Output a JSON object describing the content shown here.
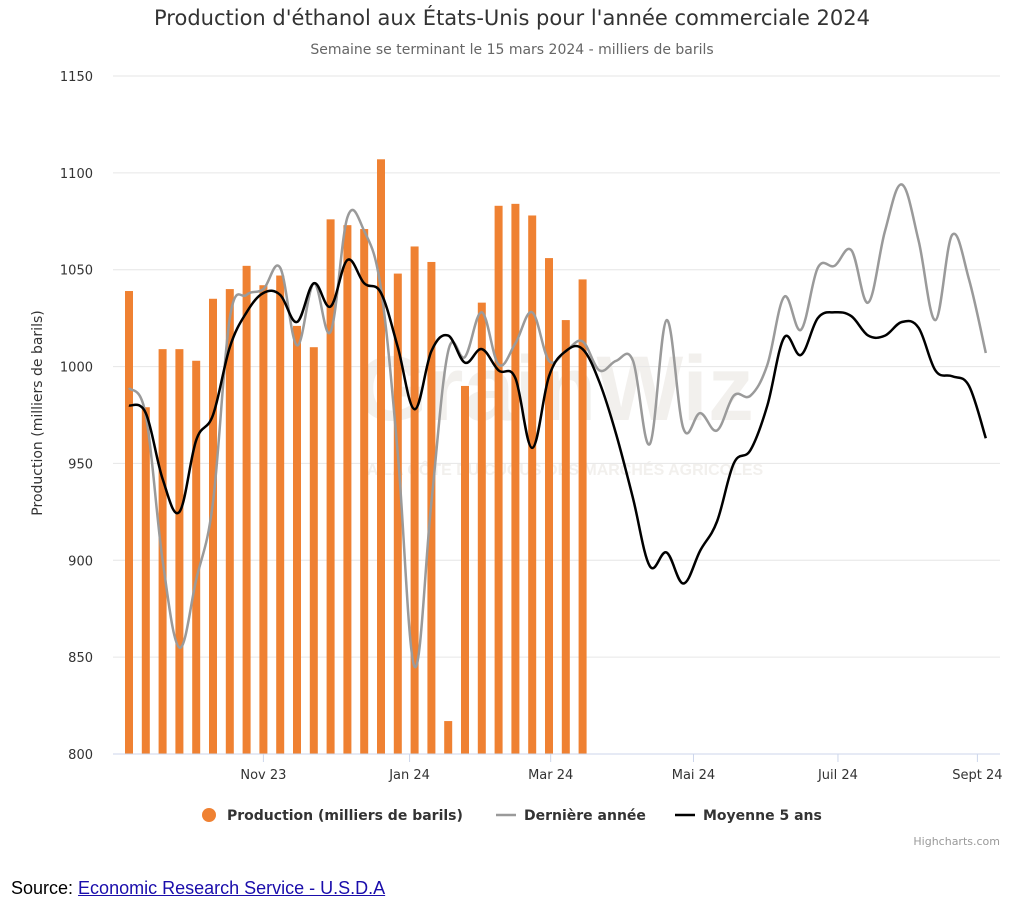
{
  "chart_data": {
    "type": "bar",
    "title": "Production d'éthanol aux États-Unis pour l'année commerciale 2024",
    "subtitle": "Semaine se terminant le 15 mars 2024 - milliers de barils",
    "ylabel": "Production (milliers de barils)",
    "xlabel": "",
    "ylim": [
      800,
      1150
    ],
    "yticks": [
      800,
      850,
      900,
      950,
      1000,
      1050,
      1100,
      1150
    ],
    "xticks": [
      "Nov 23",
      "Jan 24",
      "Mar 24",
      "Mai 24",
      "Juil 24",
      "Sept 24"
    ],
    "grid": true,
    "legend_position": "bottom",
    "series": [
      {
        "name": "Production (milliers de barils)",
        "kind": "bar",
        "color": "#ef8132",
        "values": [
          1039,
          979,
          1009,
          1009,
          1003,
          1035,
          1040,
          1052,
          1042,
          1047,
          1021,
          1010,
          1076,
          1073,
          1071,
          1107,
          1048,
          1062,
          1054,
          817,
          990,
          1033,
          1083,
          1084,
          1078,
          1056,
          1024,
          1045
        ]
      },
      {
        "name": "Dernière année",
        "kind": "line",
        "color": "#9a9a9a",
        "values": [
          989,
          975,
          900,
          855,
          890,
          930,
          1025,
          1037,
          1040,
          1051,
          1011,
          1043,
          1018,
          1077,
          1070,
          1040,
          955,
          845,
          930,
          1008,
          1005,
          1028,
          1001,
          1012,
          1028,
          1003,
          1008,
          1013,
          998,
          1003,
          1003,
          960,
          1024,
          968,
          976,
          967,
          985,
          985,
          1001,
          1036,
          1019,
          1051,
          1052,
          1060,
          1033,
          1070,
          1094,
          1065,
          1024,
          1068,
          1045,
          1007
        ]
      },
      {
        "name": "Moyenne 5 ans",
        "kind": "line",
        "color": "#000000",
        "values": [
          980,
          976,
          942,
          925,
          962,
          975,
          1010,
          1028,
          1038,
          1037,
          1023,
          1043,
          1031,
          1055,
          1043,
          1038,
          1010,
          978,
          1008,
          1016,
          1002,
          1009,
          998,
          994,
          958,
          995,
          1008,
          1009,
          992,
          965,
          932,
          897,
          904,
          888,
          905,
          920,
          950,
          957,
          980,
          1015,
          1006,
          1025,
          1028,
          1026,
          1016,
          1016,
          1023,
          1020,
          998,
          995,
          990,
          963
        ]
      }
    ]
  },
  "legend": {
    "production": "Production (milliers de barils)",
    "last_year": "Dernière année",
    "avg5": "Moyenne 5 ans"
  },
  "credits": "Highcharts.com",
  "source": {
    "label": "Source: ",
    "link_text": "Economic Research Service - U.S.D.A"
  },
  "watermark": {
    "brand": "GrainWiz",
    "tagline": "A LA CÔTE DU CUOUS DES MARCHÉS AGRICOLES"
  },
  "colors": {
    "bar": "#ef8132",
    "last_year": "#9a9a9a",
    "avg5": "#000000",
    "grid": "#e6e6e6",
    "axis": "#ccd6eb"
  }
}
